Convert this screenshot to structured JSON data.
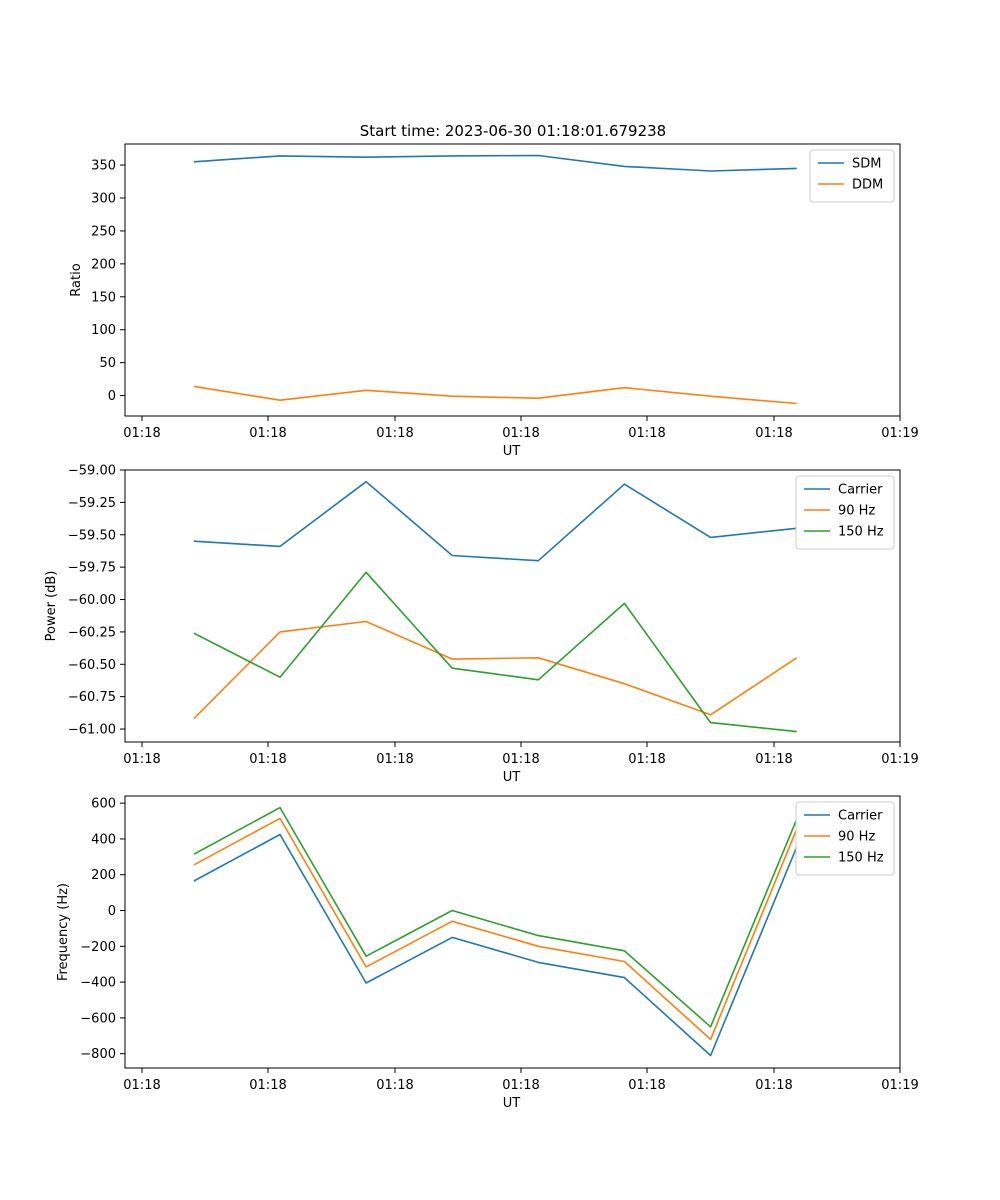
{
  "figure": {
    "title": "Start time: 2023-06-30 01:18:01.679238"
  },
  "chart_data": [
    {
      "type": "line",
      "title": "Start time: 2023-06-30 01:18:01.679238",
      "xlabel": "UT",
      "ylabel": "Ratio",
      "x_tick_labels": [
        "01:18",
        "01:18",
        "01:18",
        "01:18",
        "01:18",
        "01:18",
        "01:19"
      ],
      "x": [
        1,
        2,
        3,
        4,
        5,
        6,
        7,
        8
      ],
      "xlim": [
        0.2,
        9.2
      ],
      "ylim": [
        -31,
        382
      ],
      "yticks": [
        0,
        50,
        100,
        150,
        200,
        250,
        300,
        350
      ],
      "legend_position": "upper-right",
      "series": [
        {
          "name": "SDM",
          "color": "#1f77b4",
          "values": [
            355,
            364,
            362,
            364,
            364.5,
            348,
            341,
            345
          ]
        },
        {
          "name": "DDM",
          "color": "#ff7f0e",
          "values": [
            14,
            -7,
            8,
            -1,
            -4,
            12,
            -1,
            -12
          ]
        }
      ]
    },
    {
      "type": "line",
      "xlabel": "UT",
      "ylabel": "Power (dB)",
      "x_tick_labels": [
        "01:18",
        "01:18",
        "01:18",
        "01:18",
        "01:18",
        "01:18",
        "01:19"
      ],
      "x": [
        1,
        2,
        3,
        4,
        5,
        6,
        7,
        8
      ],
      "xlim": [
        0.2,
        9.2
      ],
      "ylim": [
        -61.1,
        -59.0
      ],
      "yticks": [
        -61.0,
        -60.75,
        -60.5,
        -60.25,
        -60.0,
        -59.75,
        -59.5,
        -59.25,
        -59.0
      ],
      "ytick_labels": [
        "−61.00",
        "−60.75",
        "−60.50",
        "−60.25",
        "−60.00",
        "−59.75",
        "−59.50",
        "−59.25",
        "−59.00"
      ],
      "legend_position": "upper-right",
      "series": [
        {
          "name": "Carrier",
          "color": "#1f77b4",
          "values": [
            -59.55,
            -59.59,
            -59.09,
            -59.66,
            -59.7,
            -59.11,
            -59.52,
            -59.45
          ]
        },
        {
          "name": "90 Hz",
          "color": "#ff7f0e",
          "values": [
            -60.92,
            -60.25,
            -60.17,
            -60.46,
            -60.45,
            -60.65,
            -60.89,
            -60.45
          ]
        },
        {
          "name": "150 Hz",
          "color": "#2ca02c",
          "values": [
            -60.26,
            -60.6,
            -59.79,
            -60.53,
            -60.62,
            -60.03,
            -60.95,
            -61.02
          ]
        }
      ]
    },
    {
      "type": "line",
      "xlabel": "UT",
      "ylabel": "Frequency (Hz)",
      "x_tick_labels": [
        "01:18",
        "01:18",
        "01:18",
        "01:18",
        "01:18",
        "01:18",
        "01:19"
      ],
      "x": [
        1,
        2,
        3,
        4,
        5,
        6,
        7,
        8
      ],
      "xlim": [
        0.2,
        9.2
      ],
      "ylim": [
        -880,
        640
      ],
      "yticks": [
        -800,
        -600,
        -400,
        -200,
        0,
        200,
        400,
        600
      ],
      "ytick_labels": [
        "−800",
        "−600",
        "−400",
        "−200",
        "0",
        "200",
        "400",
        "600"
      ],
      "legend_position": "upper-right",
      "series": [
        {
          "name": "Carrier",
          "color": "#1f77b4",
          "values": [
            165,
            425,
            -405,
            -150,
            -290,
            -375,
            -810,
            355
          ]
        },
        {
          "name": "90 Hz",
          "color": "#ff7f0e",
          "values": [
            255,
            515,
            -315,
            -60,
            -200,
            -285,
            -720,
            455
          ]
        },
        {
          "name": "150 Hz",
          "color": "#2ca02c",
          "values": [
            315,
            575,
            -255,
            0,
            -140,
            -225,
            -650,
            510
          ]
        }
      ]
    }
  ]
}
